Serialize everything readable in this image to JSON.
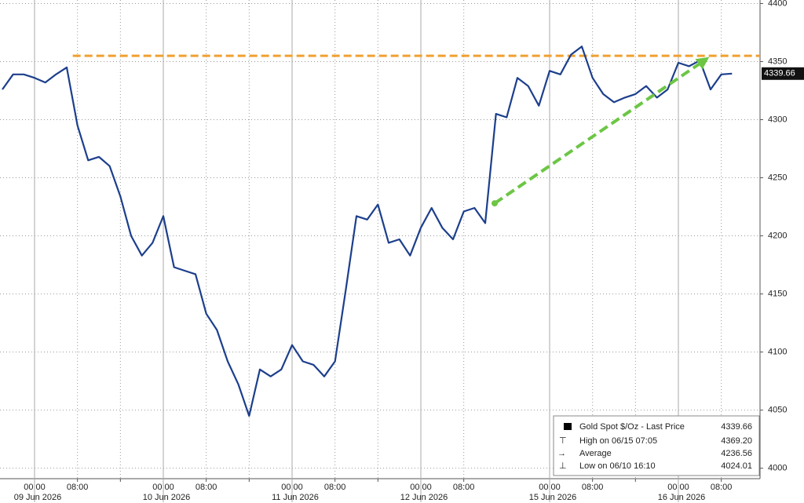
{
  "chart_data": {
    "type": "line",
    "x": [
      null,
      null,
      null,
      "06/09 00:00",
      "06/09 02:00",
      "06/09 04:00",
      "06/09 06:00",
      "06/09 08:00",
      "06/09 10:00",
      "06/09 12:00",
      "06/09 14:00",
      "06/09 16:00",
      "06/09 18:00",
      "06/09 20:00",
      "06/09 22:00",
      "06/10 00:00",
      "06/10 02:00",
      "06/10 04:00",
      "06/10 06:00",
      "06/10 08:00",
      "06/10 10:00",
      "06/10 12:00",
      "06/10 14:00",
      "06/10 16:00",
      "06/10 18:00",
      "06/10 20:00",
      "06/10 22:00",
      "06/11 00:00",
      "06/11 02:00",
      "06/11 04:00",
      "06/11 06:00",
      "06/11 08:00",
      "06/11 10:00",
      "06/11 12:00",
      "06/11 14:00",
      "06/11 16:00",
      "06/11 18:00",
      "06/11 20:00",
      "06/11 22:00",
      "06/12 00:00",
      "06/12 02:00",
      "06/12 04:00",
      "06/12 06:00",
      "06/12 08:00",
      "06/12 10:00",
      "06/12 12:00",
      null,
      null,
      null,
      null,
      null,
      "06/15 00:00",
      "06/15 02:00",
      "06/15 04:00",
      "06/15 06:00",
      "06/15 08:00",
      "06/15 10:00",
      "06/15 12:00",
      "06/15 14:00",
      "06/15 16:00",
      "06/15 18:00",
      "06/15 20:00",
      "06/15 22:00",
      "06/16 00:00",
      "06/16 02:00",
      "06/16 04:00",
      "06/16 06:00",
      "06/16 08:00",
      "06/16 10:00"
    ],
    "series": [
      {
        "name": "Gold Spot $/Oz - Last Price",
        "color": "#1c3f8c",
        "values": [
          4326,
          4339,
          4339,
          4336,
          4332,
          4339,
          4345,
          4295,
          4265,
          4268,
          4260,
          4234,
          4200,
          4183,
          4194,
          4217,
          4173,
          4170,
          4167,
          4133,
          4119,
          4092,
          4072,
          4045,
          4085,
          4079,
          4085,
          4106,
          4092,
          4089,
          4079,
          4092,
          4153,
          4217,
          4214,
          4227,
          4194,
          4197,
          4183,
          4207,
          4224,
          4207,
          4197,
          4221,
          4224,
          4211,
          4305,
          4302,
          4336,
          4329,
          4312,
          4342,
          4339,
          4356,
          4363,
          4336,
          4322,
          4315,
          4319,
          4322,
          4329,
          4319,
          4326,
          4349,
          4346,
          4351,
          4326,
          4339,
          4339.66
        ]
      }
    ],
    "last_price": 4339.66,
    "stats": [
      {
        "label": "High on 06/15 07:05",
        "value": {
          "value": 4369.2,
          "label": "4369.20"
        }
      },
      {
        "label": "Average",
        "value": 4236.56
      },
      {
        "label": "Low on 06/10 16:10",
        "value": 4024.01
      }
    ],
    "ylim": [
      3991,
      4403
    ],
    "yticks": [
      4000,
      4050,
      4100,
      4150,
      4200,
      4250,
      4300,
      4350,
      4400
    ],
    "xticks": [
      {
        "value": "06/09 00:00",
        "label": "00:00"
      },
      {
        "value": "06/09 08:00",
        "label": "08:00"
      },
      {
        "value": "06/09 16:00",
        "label": null
      },
      {
        "value": "06/10 00:00",
        "label": "00:00"
      },
      {
        "value": "06/10 08:00",
        "label": "08:00"
      },
      {
        "value": "06/10 16:00",
        "label": null
      },
      {
        "value": "06/11 00:00",
        "label": "00:00"
      },
      {
        "value": "06/11 08:00",
        "label": "08:00"
      },
      {
        "value": "06/11 16:00",
        "label": null
      },
      {
        "value": "06/12 00:00",
        "label": "00:00"
      },
      {
        "value": "06/12 08:00",
        "label": "08:00"
      },
      {
        "value": "06/15 00:00",
        "label": "00:00"
      },
      {
        "value": "06/15 08:00",
        "label": "08:00"
      },
      {
        "value": "06/15 16:00",
        "label": null
      },
      {
        "value": "06/16 00:00",
        "label": "00:00"
      },
      {
        "value": "06/16 08:00",
        "label": "08:00"
      }
    ],
    "day_ticks": [
      {
        "value": "06/09 00:00",
        "label": "09 Jun 2026"
      },
      {
        "value": "06/10 00:00",
        "label": "10 Jun 2026"
      },
      {
        "value": "06/11 00:00",
        "label": "11 Jun 2026"
      },
      {
        "value": "06/12 00:00",
        "label": "12 Jun 2026"
      },
      {
        "value": "06/15 00:00",
        "label": "15 Jun 2026"
      },
      {
        "value": "06/16 00:00",
        "label": "16 Jun 2026"
      }
    ],
    "resistance": {
      "from": "06/09 08:00",
      "value": 4355,
      "color": "#f0a030"
    },
    "trend_arrow": {
      "from": {
        "x": "06/12 12:00",
        "value": 4228
      },
      "to": {
        "x": "06/16 06:00",
        "value": 4350
      },
      "color": "#6cc644"
    },
    "grid": true
  }
}
